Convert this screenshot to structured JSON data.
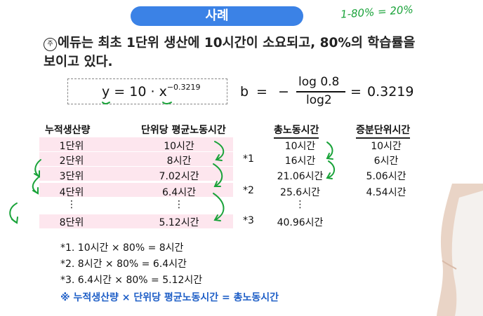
{
  "title": "사례",
  "hand_note": "1-80% = 20%",
  "intro": {
    "symbol": "주",
    "line1": "에듀는 최초 1단위 생산에 10시간이 소요되고, 80%의 학습률을",
    "line2": "보이고 있다."
  },
  "formula": {
    "y": "y",
    "eq": "=",
    "coef": "10 ·",
    "x": "x",
    "exp": "−0.3219"
  },
  "b_formula": {
    "b": "b",
    "eq1": "=",
    "minus": "−",
    "num": "log 0.8",
    "den": "log2",
    "eq2": "=",
    "result": "0.3219"
  },
  "table": {
    "headers": [
      "누적생산량",
      "단위당 평균노동시간",
      "총노동시간",
      "증분단위시간"
    ],
    "rows": [
      {
        "units": "1단위",
        "avg": "10시간",
        "mark": "",
        "total": "10시간",
        "incr": "10시간"
      },
      {
        "units": "2단위",
        "avg": "8시간",
        "mark": "*1",
        "total": "16시간",
        "incr": "6시간"
      },
      {
        "units": "3단위",
        "avg": "7.02시간",
        "mark": "",
        "total": "21.06시간",
        "incr": "5.06시간"
      },
      {
        "units": "4단위",
        "avg": "6.4시간",
        "mark": "*2",
        "total": "25.6시간",
        "incr": "4.54시간"
      },
      {
        "units": "⋮",
        "avg": "⋮",
        "mark": "",
        "total": "⋮",
        "incr": ""
      },
      {
        "units": "8단위",
        "avg": "5.12시간",
        "mark": "*3",
        "total": "40.96시간",
        "incr": ""
      }
    ]
  },
  "footnotes": [
    "*1. 10시간 × 80% = 8시간",
    "*2. 8시간 × 80% = 6.4시간",
    "*3. 6.4시간 × 80% = 5.12시간"
  ],
  "summary": "※ 누적생산량 × 단위당 평균노동시간 = 총노동시간",
  "colors": {
    "title_bg": "#3b82e6",
    "highlight_row": "#fde6ee",
    "annotation": "#1aa33a",
    "summary": "#1f5fc7"
  }
}
